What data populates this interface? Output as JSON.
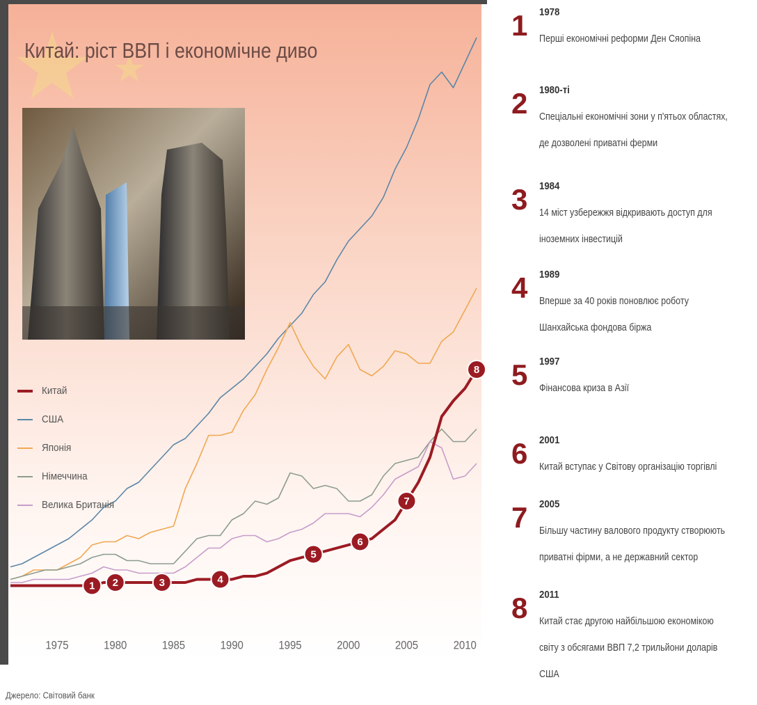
{
  "chart_data": {
    "type": "line",
    "title": "Китай: ріст ВВП і економічне диво",
    "source": "Джерело: Світовий банк",
    "x": [
      1971,
      1972,
      1973,
      1974,
      1975,
      1976,
      1977,
      1978,
      1979,
      1980,
      1981,
      1982,
      1983,
      1984,
      1985,
      1986,
      1987,
      1988,
      1989,
      1990,
      1991,
      1992,
      1993,
      1994,
      1995,
      1996,
      1997,
      1998,
      1999,
      2000,
      2001,
      2002,
      2003,
      2004,
      2005,
      2006,
      2007,
      2008,
      2009,
      2010,
      2011
    ],
    "xlim": [
      1971,
      2011
    ],
    "xticks": [
      1975,
      1980,
      1985,
      1990,
      1995,
      2000,
      2005,
      2010
    ],
    "ylim": [
      0,
      18.5
    ],
    "grid": false,
    "legend": "left",
    "series": [
      {
        "name": "Китай",
        "color": "#9b1b23",
        "values": [
          0.3,
          0.3,
          0.3,
          0.3,
          0.3,
          0.3,
          0.3,
          0.3,
          0.4,
          0.4,
          0.4,
          0.4,
          0.4,
          0.4,
          0.4,
          0.4,
          0.5,
          0.5,
          0.5,
          0.5,
          0.6,
          0.6,
          0.7,
          0.9,
          1.1,
          1.2,
          1.3,
          1.4,
          1.5,
          1.6,
          1.7,
          1.8,
          2.1,
          2.4,
          3.0,
          3.6,
          4.4,
          5.7,
          6.2,
          6.6,
          7.2
        ]
      },
      {
        "name": "США",
        "color": "#5b86a8",
        "values": [
          0.9,
          1.0,
          1.2,
          1.4,
          1.6,
          1.8,
          2.1,
          2.4,
          2.8,
          3.0,
          3.4,
          3.6,
          4.0,
          4.4,
          4.8,
          5.0,
          5.4,
          5.8,
          6.3,
          6.6,
          6.9,
          7.3,
          7.7,
          8.2,
          8.6,
          9.0,
          9.6,
          10.0,
          10.7,
          11.3,
          11.7,
          12.1,
          12.7,
          13.6,
          14.3,
          15.2,
          16.3,
          16.7,
          16.2,
          17.0,
          17.8
        ]
      },
      {
        "name": "Японія",
        "color": "#f0a852",
        "values": [
          0.5,
          0.6,
          0.8,
          0.8,
          0.8,
          1.0,
          1.2,
          1.6,
          1.7,
          1.7,
          1.9,
          1.8,
          2.0,
          2.1,
          2.2,
          3.4,
          4.2,
          5.1,
          5.1,
          5.2,
          5.9,
          6.4,
          7.2,
          7.9,
          8.7,
          7.9,
          7.3,
          6.9,
          7.6,
          8.0,
          7.2,
          7.0,
          7.3,
          7.8,
          7.7,
          7.4,
          7.4,
          8.1,
          8.4,
          9.1,
          9.8
        ]
      },
      {
        "name": "Німеччина",
        "color": "#8d9c8f",
        "values": [
          0.5,
          0.6,
          0.7,
          0.8,
          0.8,
          0.9,
          1.0,
          1.2,
          1.3,
          1.3,
          1.1,
          1.1,
          1.0,
          1.0,
          1.0,
          1.4,
          1.8,
          1.9,
          1.9,
          2.4,
          2.6,
          3.0,
          2.9,
          3.1,
          3.9,
          3.8,
          3.4,
          3.5,
          3.4,
          3.0,
          3.0,
          3.2,
          3.8,
          4.2,
          4.3,
          4.4,
          4.9,
          5.3,
          4.9,
          4.9,
          5.3
        ]
      },
      {
        "name": "Велика Британія",
        "color": "#c79ccb",
        "values": [
          0.4,
          0.4,
          0.5,
          0.5,
          0.5,
          0.5,
          0.6,
          0.7,
          0.9,
          0.8,
          0.8,
          0.7,
          0.7,
          0.7,
          0.7,
          0.9,
          1.2,
          1.5,
          1.5,
          1.8,
          1.9,
          1.9,
          1.7,
          1.8,
          2.0,
          2.1,
          2.3,
          2.6,
          2.6,
          2.6,
          2.5,
          2.8,
          3.2,
          3.7,
          3.9,
          4.1,
          4.9,
          4.7,
          3.7,
          3.8,
          4.2
        ]
      }
    ],
    "markers": [
      {
        "label": 1,
        "x": 1978
      },
      {
        "label": 2,
        "x": 1980
      },
      {
        "label": 3,
        "x": 1984
      },
      {
        "label": 4,
        "x": 1989
      },
      {
        "label": 5,
        "x": 1997
      },
      {
        "label": 6,
        "x": 2001
      },
      {
        "label": 7,
        "x": 2005
      },
      {
        "label": 8,
        "x": 2011
      }
    ]
  },
  "timeline": [
    {
      "number": 1,
      "year": "1978",
      "lines": [
        "Перші економічні реформи Ден Сяопіна"
      ]
    },
    {
      "number": 2,
      "year": "1980-ті",
      "lines": [
        "Спеціальні економічні зони у п'ятьох областях,",
        "де дозволені приватні ферми"
      ]
    },
    {
      "number": 3,
      "year": "1984",
      "lines": [
        "14 міст узбережжя відкривають доступ для",
        "іноземних інвестицій"
      ]
    },
    {
      "number": 4,
      "year": "1989",
      "lines": [
        "Вперше за 40 років поновлює роботу",
        "Шанхайська фондова біржа"
      ]
    },
    {
      "number": 5,
      "year": "1997",
      "lines": [
        "Фінансова криза в Азії"
      ]
    },
    {
      "number": 6,
      "year": "2001",
      "lines": [
        "Китай вступає у Світову організацію торгівлі"
      ]
    },
    {
      "number": 7,
      "year": "2005",
      "lines": [
        "Більшу частину валового продукту створюють",
        "приватні фірми, а не державний сектор"
      ]
    },
    {
      "number": 8,
      "year": "2011",
      "lines": [
        "Китай стає другою найбільшою економікою",
        "світу з обсягами ВВП 7,2 трильйони доларів",
        "США"
      ]
    }
  ]
}
